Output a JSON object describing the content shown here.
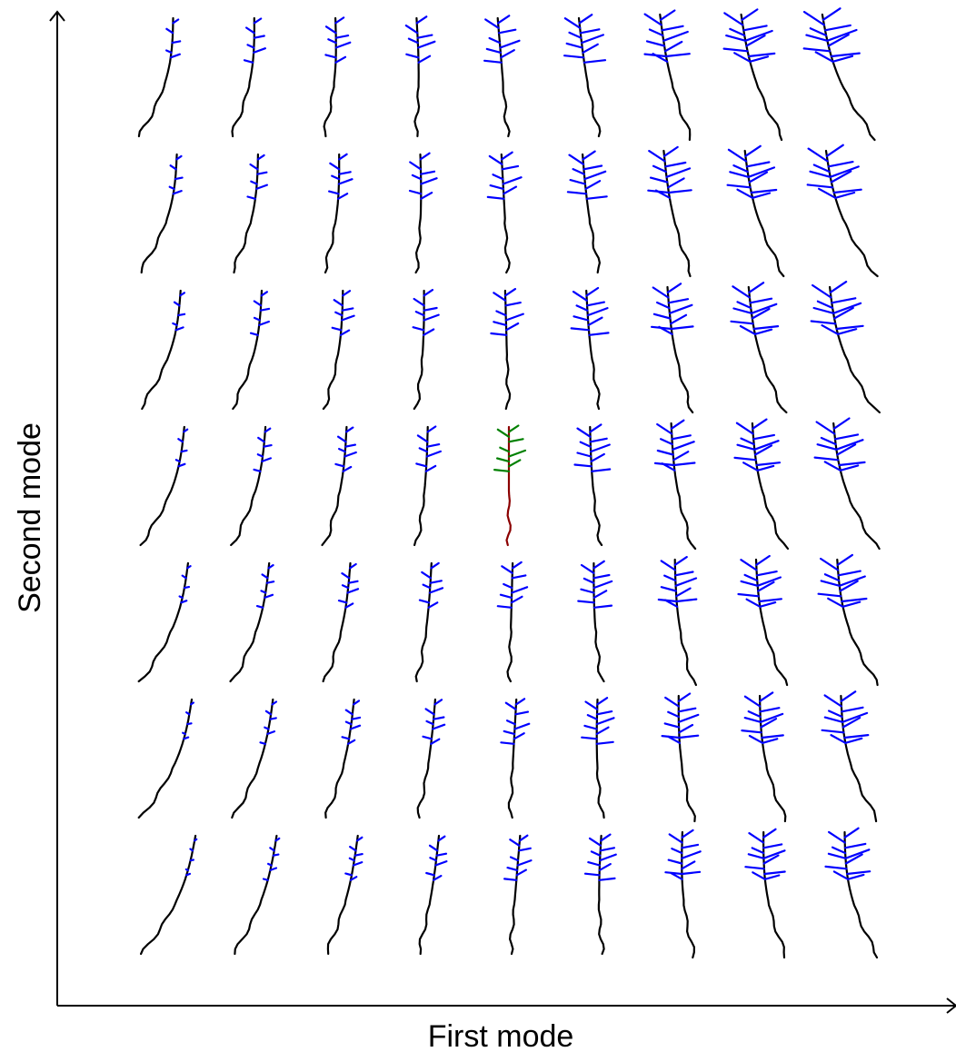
{
  "axes": {
    "x_label": "First mode",
    "y_label": "Second mode"
  },
  "grid": {
    "columns": 9,
    "rows": 7,
    "mean_shape_cell": {
      "row": 4,
      "column": 5
    }
  },
  "colors": {
    "axis": "#000000",
    "stem": "#000000",
    "branches": "#0000ff",
    "mean_stem": "#8b0000",
    "mean_branches": "#008000"
  }
}
